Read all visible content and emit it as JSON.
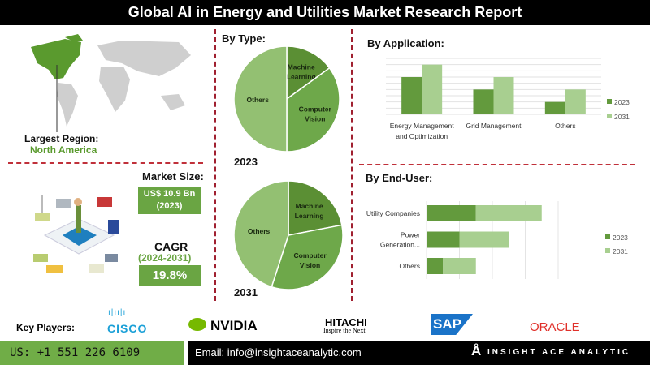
{
  "title": "Global AI in Energy and Utilities Market Research Report",
  "region": {
    "label": "Largest Region:",
    "value": "North America"
  },
  "market_size": {
    "label": "Market Size:",
    "value": "US$ 10.9 Bn",
    "year": "(2023)"
  },
  "cagr": {
    "label": "CAGR",
    "period": "(2024-2031)",
    "value": "19.8%"
  },
  "key_players": {
    "label": "Key Players:",
    "logos": [
      "CISCO",
      "NVIDIA",
      "HITACHI",
      "Inspire the Next",
      "SAP",
      "ORACLE"
    ]
  },
  "footer": {
    "phone": "US: +1 551 226 6109",
    "email": "Email: info@insightaceanalytic.com",
    "brand": "INSIGHT ACE ANALYTIC"
  },
  "colors": {
    "dark_green": "#5b8f34",
    "mid_green": "#6ea84a",
    "light_green": "#93c072",
    "bar_2023": "#639a3d",
    "bar_2031": "#a8cf90",
    "accent_red": "#c0303a"
  },
  "chart_data": [
    {
      "type": "pie",
      "title": "By Type:",
      "caption": "2023",
      "categories": [
        "Machine Learning",
        "Computer Vision",
        "Others"
      ],
      "values": [
        15,
        35,
        50
      ]
    },
    {
      "type": "pie",
      "caption": "2031",
      "categories": [
        "Machine Learning",
        "Computer Vision",
        "Others"
      ],
      "values": [
        22,
        33,
        45
      ]
    },
    {
      "type": "bar",
      "title": "By Application:",
      "categories": [
        "Energy Management and Optimization",
        "Grid Management",
        "Others"
      ],
      "series": [
        {
          "name": "2023",
          "values": [
            6,
            4,
            2
          ]
        },
        {
          "name": "2031",
          "values": [
            8,
            6,
            4
          ]
        }
      ],
      "ylim": [
        0,
        9
      ],
      "grid": true,
      "legend": "right"
    },
    {
      "type": "bar",
      "orientation": "horizontal",
      "stacked": true,
      "title": "By End-User:",
      "categories": [
        "Utility Companies",
        "Power Generation...",
        "Others"
      ],
      "series": [
        {
          "name": "2023",
          "values": [
            1.5,
            1.0,
            0.5
          ]
        },
        {
          "name": "2031",
          "values": [
            2.0,
            1.5,
            1.0
          ]
        }
      ],
      "xlim": [
        0,
        4
      ],
      "grid": true,
      "legend": "right"
    }
  ]
}
